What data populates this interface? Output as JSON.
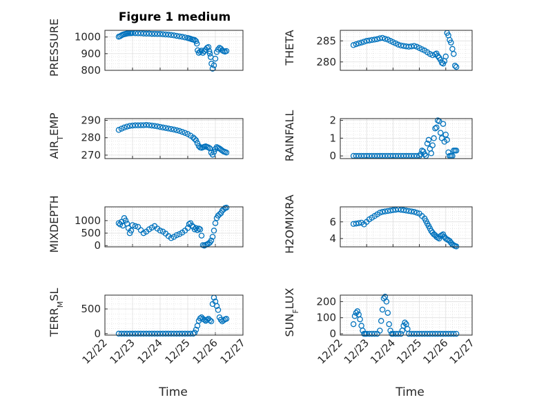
{
  "figure_title": "Figure 1 medium",
  "colors": {
    "marker": "#0072BD",
    "axis": "#262626",
    "grid": "#d9d9d9"
  },
  "chart_data": [
    {
      "type": "scatter",
      "ylabel": "PRESSURE",
      "ylim": [
        800,
        1040
      ],
      "yticks": [
        800,
        900,
        1000
      ],
      "xlim": [
        "12/22",
        "12/27"
      ],
      "grid": true,
      "x": [
        22.5,
        22.55,
        22.6,
        22.65,
        22.7,
        22.75,
        22.8,
        22.85,
        22.9,
        22.95,
        23.0,
        23.1,
        23.2,
        23.3,
        23.4,
        23.5,
        23.6,
        23.7,
        23.8,
        23.9,
        24.0,
        24.1,
        24.2,
        24.3,
        24.4,
        24.5,
        24.6,
        24.7,
        24.8,
        24.9,
        25.0,
        25.05,
        25.1,
        25.15,
        25.2,
        25.25,
        25.3,
        25.33,
        25.36,
        25.4,
        25.45,
        25.5,
        25.55,
        25.6,
        25.65,
        25.7,
        25.75,
        25.78,
        25.8,
        25.83,
        25.86,
        25.9,
        25.95,
        26.0,
        26.05,
        26.1,
        26.15,
        26.2,
        26.25,
        26.3,
        26.35,
        26.4
      ],
      "y": [
        1002,
        1005,
        1010,
        1014,
        1017,
        1019,
        1021,
        1022,
        1023,
        1023,
        1024,
        1023,
        1022,
        1022,
        1021,
        1020,
        1020,
        1019,
        1019,
        1018,
        1018,
        1017,
        1015,
        1014,
        1012,
        1010,
        1007,
        1004,
        1001,
        998,
        994,
        992,
        989,
        986,
        984,
        982,
        975,
        960,
        920,
        905,
        912,
        918,
        905,
        915,
        925,
        935,
        940,
        915,
        900,
        880,
        840,
        810,
        830,
        870,
        910,
        925,
        935,
        930,
        920,
        915,
        912,
        916
      ]
    },
    {
      "type": "scatter",
      "ylabel": "THETA",
      "ylim": [
        278,
        287.5
      ],
      "yticks": [
        280,
        285
      ],
      "xlim": [
        "12/22",
        "12/27"
      ],
      "grid": true,
      "x": [
        22.5,
        22.6,
        22.7,
        22.8,
        22.9,
        23.0,
        23.1,
        23.2,
        23.3,
        23.4,
        23.5,
        23.6,
        23.7,
        23.8,
        23.9,
        24.0,
        24.1,
        24.2,
        24.3,
        24.4,
        24.5,
        24.6,
        24.7,
        24.8,
        24.9,
        25.0,
        25.1,
        25.2,
        25.3,
        25.4,
        25.5,
        25.6,
        25.65,
        25.7,
        25.75,
        25.8,
        25.85,
        25.9,
        25.95,
        26.0,
        26.05,
        26.1,
        26.15,
        26.2,
        26.25,
        26.3,
        26.35,
        26.4
      ],
      "y": [
        284.0,
        284.2,
        284.4,
        284.6,
        284.8,
        285.0,
        285.1,
        285.2,
        285.3,
        285.4,
        285.6,
        285.7,
        285.5,
        285.3,
        285.0,
        284.7,
        284.4,
        284.1,
        283.9,
        283.8,
        283.7,
        283.6,
        283.7,
        283.8,
        283.6,
        283.3,
        283.0,
        282.7,
        282.3,
        281.9,
        281.6,
        281.8,
        282.0,
        281.4,
        281.0,
        280.5,
        279.8,
        279.6,
        280.2,
        281.3,
        286.9,
        286.3,
        285.2,
        284.6,
        283.1,
        281.9,
        279.1,
        278.8
      ]
    },
    {
      "type": "scatter",
      "ylabel": "AIR_TEMP",
      "ylim": [
        268,
        291
      ],
      "yticks": [
        270,
        280,
        290
      ],
      "xlim": [
        "12/22",
        "12/27"
      ],
      "grid": true,
      "x": [
        22.5,
        22.6,
        22.7,
        22.8,
        22.9,
        23.0,
        23.1,
        23.2,
        23.3,
        23.4,
        23.5,
        23.6,
        23.7,
        23.8,
        23.9,
        24.0,
        24.1,
        24.2,
        24.3,
        24.4,
        24.5,
        24.6,
        24.7,
        24.8,
        24.9,
        25.0,
        25.1,
        25.2,
        25.25,
        25.3,
        25.35,
        25.4,
        25.45,
        25.5,
        25.55,
        25.6,
        25.65,
        25.7,
        25.75,
        25.8,
        25.85,
        25.9,
        25.95,
        26.0,
        26.05,
        26.1,
        26.15,
        26.2,
        26.25,
        26.3,
        26.35,
        26.4
      ],
      "y": [
        284.5,
        285.2,
        285.9,
        286.4,
        286.8,
        287.0,
        287.1,
        287.1,
        287.2,
        287.2,
        287.3,
        287.2,
        287.0,
        286.8,
        286.5,
        286.2,
        285.9,
        285.6,
        285.3,
        285.0,
        284.7,
        284.3,
        283.9,
        283.4,
        282.8,
        282.1,
        281.2,
        280.1,
        279.3,
        278.5,
        276.8,
        275.2,
        274.4,
        274.2,
        274.5,
        274.8,
        275.0,
        274.7,
        274.4,
        273.9,
        271.5,
        270.3,
        271.8,
        273.5,
        274.6,
        274.2,
        273.8,
        273.2,
        272.6,
        272.1,
        271.8,
        271.5
      ]
    },
    {
      "type": "scatter",
      "ylabel": "RAINFALL",
      "ylim": [
        -0.15,
        2.1
      ],
      "yticks": [
        0,
        1,
        2
      ],
      "xlim": [
        "12/22",
        "12/27"
      ],
      "grid": true,
      "x": [
        22.5,
        22.6,
        22.7,
        22.8,
        22.9,
        23.0,
        23.1,
        23.2,
        23.3,
        23.4,
        23.5,
        23.6,
        23.7,
        23.8,
        23.9,
        24.0,
        24.1,
        24.2,
        24.3,
        24.4,
        24.5,
        24.6,
        24.7,
        24.8,
        24.9,
        25.0,
        25.05,
        25.1,
        25.15,
        25.2,
        25.25,
        25.3,
        25.35,
        25.4,
        25.45,
        25.5,
        25.55,
        25.6,
        25.65,
        25.7,
        25.75,
        25.8,
        25.85,
        25.9,
        25.95,
        26.0,
        26.05,
        26.1,
        26.15,
        26.2,
        26.25,
        26.3,
        26.35,
        26.4
      ],
      "y": [
        0,
        0,
        0,
        0,
        0,
        0,
        0,
        0,
        0,
        0,
        0,
        0,
        0,
        0,
        0,
        0,
        0,
        0,
        0,
        0,
        0,
        0,
        0,
        0,
        0,
        0,
        0.1,
        0.3,
        0.25,
        0.1,
        0,
        0.7,
        0.9,
        0.4,
        0.15,
        0.6,
        1.0,
        1.55,
        1.6,
        2.0,
        1.95,
        1.3,
        1.0,
        1.8,
        0.8,
        1.2,
        0.9,
        0.2,
        0,
        0,
        0,
        0.3,
        0.3,
        0.3
      ]
    },
    {
      "type": "scatter",
      "ylabel": "MIXDEPTH",
      "ylim": [
        -50,
        1550
      ],
      "yticks": [
        0,
        500,
        1000
      ],
      "xlim": [
        "12/22",
        "12/27"
      ],
      "grid": true,
      "x": [
        22.5,
        22.55,
        22.6,
        22.65,
        22.7,
        22.75,
        22.8,
        22.85,
        22.9,
        22.95,
        23.0,
        23.1,
        23.2,
        23.3,
        23.4,
        23.5,
        23.6,
        23.7,
        23.8,
        23.9,
        24.0,
        24.1,
        24.2,
        24.3,
        24.4,
        24.5,
        24.6,
        24.7,
        24.8,
        24.9,
        25.0,
        25.05,
        25.1,
        25.15,
        25.2,
        25.25,
        25.3,
        25.35,
        25.4,
        25.45,
        25.5,
        25.55,
        25.6,
        25.65,
        25.7,
        25.75,
        25.8,
        25.85,
        25.9,
        25.95,
        26.0,
        26.05,
        26.1,
        26.15,
        26.2,
        26.25,
        26.3,
        26.35,
        26.4
      ],
      "y": [
        900,
        850,
        950,
        800,
        1100,
        1000,
        880,
        700,
        500,
        600,
        820,
        780,
        750,
        620,
        500,
        560,
        650,
        720,
        780,
        680,
        600,
        560,
        480,
        380,
        300,
        350,
        420,
        460,
        520,
        600,
        700,
        860,
        900,
        800,
        750,
        650,
        700,
        620,
        680,
        650,
        400,
        20,
        0,
        30,
        50,
        80,
        120,
        200,
        350,
        600,
        900,
        1100,
        1200,
        1250,
        1300,
        1400,
        1450,
        1500,
        1520
      ]
    },
    {
      "type": "scatter",
      "ylabel": "H2OMIXRA",
      "ylim": [
        3,
        7.8
      ],
      "yticks": [
        4,
        6
      ],
      "xlim": [
        "12/22",
        "12/27"
      ],
      "grid": true,
      "x": [
        22.5,
        22.6,
        22.7,
        22.8,
        22.9,
        23.0,
        23.1,
        23.2,
        23.3,
        23.4,
        23.5,
        23.6,
        23.7,
        23.8,
        23.9,
        24.0,
        24.1,
        24.2,
        24.3,
        24.4,
        24.5,
        24.6,
        24.7,
        24.8,
        24.9,
        25.0,
        25.1,
        25.2,
        25.25,
        25.3,
        25.35,
        25.4,
        25.45,
        25.5,
        25.55,
        25.6,
        25.65,
        25.7,
        25.75,
        25.8,
        25.85,
        25.9,
        25.95,
        26.0,
        26.05,
        26.1,
        26.15,
        26.2,
        26.25,
        26.3,
        26.35,
        26.4
      ],
      "y": [
        5.75,
        5.8,
        5.85,
        5.9,
        5.7,
        6.0,
        6.3,
        6.5,
        6.7,
        6.9,
        7.1,
        7.2,
        7.25,
        7.3,
        7.35,
        7.4,
        7.45,
        7.5,
        7.45,
        7.4,
        7.35,
        7.3,
        7.25,
        7.2,
        7.1,
        7.0,
        6.7,
        6.4,
        6.1,
        5.8,
        5.5,
        5.2,
        4.9,
        4.7,
        4.5,
        4.4,
        4.2,
        4.1,
        4.0,
        4.3,
        4.4,
        4.5,
        4.2,
        4.0,
        3.9,
        3.8,
        3.7,
        3.5,
        3.3,
        3.2,
        3.1,
        3.05
      ]
    },
    {
      "type": "scatter",
      "ylabel": "TERR_MSL",
      "ylim": [
        -30,
        780
      ],
      "yticks": [
        0,
        500
      ],
      "xlim": [
        "12/22",
        "12/27"
      ],
      "grid": true,
      "x": [
        22.5,
        22.6,
        22.7,
        22.8,
        22.9,
        23.0,
        23.1,
        23.2,
        23.3,
        23.4,
        23.5,
        23.6,
        23.7,
        23.8,
        23.9,
        24.0,
        24.1,
        24.2,
        24.3,
        24.4,
        24.5,
        24.6,
        24.7,
        24.8,
        24.9,
        25.0,
        25.1,
        25.2,
        25.25,
        25.3,
        25.35,
        25.4,
        25.45,
        25.5,
        25.55,
        25.6,
        25.65,
        25.7,
        25.75,
        25.8,
        25.85,
        25.9,
        25.95,
        26.0,
        26.05,
        26.1,
        26.15,
        26.2,
        26.25,
        26.3,
        26.35,
        26.4
      ],
      "y": [
        0,
        0,
        0,
        0,
        0,
        0,
        0,
        0,
        0,
        0,
        0,
        0,
        0,
        0,
        0,
        0,
        0,
        0,
        0,
        0,
        0,
        0,
        0,
        0,
        0,
        0,
        0,
        0,
        20,
        80,
        160,
        260,
        310,
        330,
        300,
        280,
        260,
        280,
        300,
        270,
        250,
        600,
        730,
        650,
        560,
        480,
        330,
        280,
        250,
        270,
        290,
        300
      ]
    },
    {
      "type": "scatter",
      "ylabel": "SUN_FLUX",
      "ylim": [
        -8,
        240
      ],
      "yticks": [
        0,
        100,
        200
      ],
      "xlim": [
        "12/22",
        "12/27"
      ],
      "grid": true,
      "x": [
        22.5,
        22.55,
        22.6,
        22.65,
        22.7,
        22.75,
        22.8,
        22.85,
        22.9,
        22.95,
        23.0,
        23.1,
        23.2,
        23.3,
        23.4,
        23.5,
        23.55,
        23.6,
        23.65,
        23.7,
        23.75,
        23.8,
        23.85,
        23.9,
        23.95,
        24.0,
        24.1,
        24.2,
        24.3,
        24.35,
        24.4,
        24.45,
        24.5,
        24.55,
        24.6,
        24.7,
        24.8,
        24.9,
        25.0,
        25.1,
        25.2,
        25.3,
        25.4,
        25.5,
        25.6,
        25.7,
        25.8,
        25.9,
        26.0,
        26.1,
        26.2,
        26.3,
        26.4
      ],
      "y": [
        60,
        110,
        130,
        140,
        120,
        90,
        50,
        20,
        0,
        0,
        0,
        0,
        0,
        0,
        0,
        20,
        80,
        150,
        220,
        230,
        200,
        130,
        60,
        20,
        0,
        0,
        0,
        0,
        0,
        20,
        50,
        70,
        60,
        30,
        0,
        0,
        0,
        0,
        0,
        0,
        0,
        0,
        0,
        0,
        0,
        0,
        0,
        0,
        0,
        0,
        0,
        0,
        0
      ]
    }
  ],
  "xaxis": {
    "ticks": [
      "12/22",
      "12/23",
      "12/24",
      "12/25",
      "12/26",
      "12/27"
    ],
    "label": "Time"
  }
}
